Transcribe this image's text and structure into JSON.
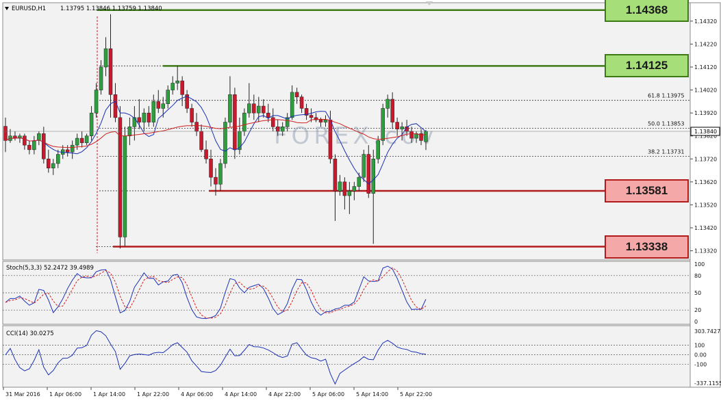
{
  "main_chart": {
    "symbol_label": "EURUSD,H1",
    "ohlc": "1.13795 1.13846 1.13759 1.13840",
    "watermark": "FOREX.cov",
    "current_price": "1.13840",
    "price_axis_labels": [
      "1.14320",
      "1.14220",
      "1.14120",
      "1.14020",
      "1.13920",
      "1.13820",
      "1.13720",
      "1.13620",
      "1.13520",
      "1.13420",
      "1.13320"
    ],
    "fib_labels": [
      {
        "text": "61.8  1.13975",
        "price": 1.13975
      },
      {
        "text": "50.0  1.13853",
        "price": 1.13853
      },
      {
        "text": "38.2  1.13731",
        "price": 1.13731
      }
    ],
    "levels": [
      {
        "label": "1.14368",
        "price": 1.14368,
        "type": "resistance",
        "color": "#a6de7a",
        "border": "#3c7a16"
      },
      {
        "label": "1.14125",
        "price": 1.14125,
        "type": "resistance",
        "color": "#a6de7a",
        "border": "#3c7a16"
      },
      {
        "label": "1.13581",
        "price": 1.13581,
        "type": "support",
        "color": "#f4a8a8",
        "border": "#b31b1b"
      },
      {
        "label": "1.13338",
        "price": 1.13338,
        "type": "support",
        "color": "#f4a8a8",
        "border": "#b31b1b"
      }
    ],
    "colors": {
      "bull": "#2e9e3e",
      "bear": "#c8192d",
      "ma_fast": "#1a2fb5",
      "ma_slow": "#d21f1f",
      "level_green": "#3c7a16",
      "level_red": "#b31b1b"
    }
  },
  "stoch": {
    "label": "Stoch(5,3,3) 52.2472 39.4989",
    "axis_labels": [
      "100",
      "80",
      "50",
      "20",
      "0"
    ],
    "main_color": "#1a2fb5",
    "signal_color": "#d21f1f"
  },
  "cci": {
    "label": "CCI(14) 30.0275",
    "axis_labels": [
      "303.7427",
      "100",
      "0.00",
      "-100",
      "-337.1155"
    ],
    "line_color": "#1a2fb5"
  },
  "time_axis": [
    "31 Mar 2016",
    "1 Apr 06:00",
    "1 Apr 14:00",
    "1 Apr 22:00",
    "4 Apr 06:00",
    "4 Apr 14:00",
    "4 Apr 22:00",
    "5 Apr 06:00",
    "5 Apr 14:00",
    "5 Apr 22:00"
  ],
  "chart_data": {
    "type": "candlestick",
    "symbol": "EURUSD",
    "timeframe": "H1",
    "candles_ohlc": [
      [
        1.13862,
        1.139,
        1.1375,
        1.138
      ],
      [
        1.138,
        1.1385,
        1.1379,
        1.1382
      ],
      [
        1.1382,
        1.1384,
        1.138,
        1.1381
      ],
      [
        1.1381,
        1.1383,
        1.1379,
        1.1382
      ],
      [
        1.1382,
        1.1383,
        1.1376,
        1.1378
      ],
      [
        1.1378,
        1.138,
        1.1374,
        1.1376
      ],
      [
        1.1376,
        1.1382,
        1.1374,
        1.138
      ],
      [
        1.138,
        1.1384,
        1.1378,
        1.1383
      ],
      [
        1.1383,
        1.1386,
        1.137,
        1.1372
      ],
      [
        1.1372,
        1.1376,
        1.1366,
        1.1368
      ],
      [
        1.1368,
        1.1372,
        1.1365,
        1.137
      ],
      [
        1.137,
        1.1376,
        1.1368,
        1.1374
      ],
      [
        1.1374,
        1.1378,
        1.1372,
        1.1376
      ],
      [
        1.1376,
        1.1378,
        1.1373,
        1.1375
      ],
      [
        1.1375,
        1.138,
        1.1372,
        1.1378
      ],
      [
        1.1378,
        1.1383,
        1.1376,
        1.1381
      ],
      [
        1.1381,
        1.1384,
        1.1377,
        1.1379
      ],
      [
        1.1379,
        1.1383,
        1.1378,
        1.1382
      ],
      [
        1.1382,
        1.1395,
        1.138,
        1.1392
      ],
      [
        1.1392,
        1.1405,
        1.139,
        1.1402
      ],
      [
        1.1402,
        1.1415,
        1.14,
        1.1412
      ],
      [
        1.1412,
        1.1425,
        1.1408,
        1.142
      ],
      [
        1.142,
        1.1435,
        1.139,
        1.14
      ],
      [
        1.14,
        1.1405,
        1.1388,
        1.139
      ],
      [
        1.139,
        1.1395,
        1.1333,
        1.1338
      ],
      [
        1.1338,
        1.1386,
        1.1334,
        1.1382
      ],
      [
        1.1382,
        1.139,
        1.1378,
        1.1386
      ],
      [
        1.1386,
        1.1395,
        1.138,
        1.139
      ],
      [
        1.139,
        1.1398,
        1.1385,
        1.1388
      ],
      [
        1.1388,
        1.1394,
        1.1384,
        1.1392
      ],
      [
        1.1392,
        1.1395,
        1.1386,
        1.1388
      ],
      [
        1.1388,
        1.14,
        1.1386,
        1.1397
      ],
      [
        1.1397,
        1.1402,
        1.1392,
        1.1394
      ],
      [
        1.1394,
        1.1399,
        1.139,
        1.1396
      ],
      [
        1.1396,
        1.1404,
        1.1394,
        1.1402
      ],
      [
        1.1402,
        1.1408,
        1.14,
        1.1405
      ],
      [
        1.1405,
        1.14125,
        1.1402,
        1.1406
      ],
      [
        1.1406,
        1.1408,
        1.1395,
        1.14
      ],
      [
        1.14,
        1.1402,
        1.1392,
        1.1394
      ],
      [
        1.1394,
        1.1396,
        1.1386,
        1.1388
      ],
      [
        1.1388,
        1.1392,
        1.1382,
        1.1384
      ],
      [
        1.1384,
        1.1387,
        1.1375,
        1.1376
      ],
      [
        1.1376,
        1.138,
        1.137,
        1.1372
      ],
      [
        1.1372,
        1.1376,
        1.136,
        1.1364
      ],
      [
        1.1364,
        1.1368,
        1.1356,
        1.1361
      ],
      [
        1.1361,
        1.1372,
        1.1358,
        1.137
      ],
      [
        1.137,
        1.139,
        1.1368,
        1.1388
      ],
      [
        1.1388,
        1.1408,
        1.1386,
        1.14
      ],
      [
        1.14,
        1.1403,
        1.1372,
        1.1376
      ],
      [
        1.1376,
        1.139,
        1.1374,
        1.1384
      ],
      [
        1.1384,
        1.1394,
        1.1382,
        1.1392
      ],
      [
        1.1392,
        1.1405,
        1.139,
        1.1396
      ],
      [
        1.1396,
        1.14,
        1.1389,
        1.1392
      ],
      [
        1.1392,
        1.1399,
        1.1388,
        1.1395
      ],
      [
        1.1395,
        1.1398,
        1.139,
        1.1392
      ],
      [
        1.1392,
        1.1396,
        1.1388,
        1.139
      ],
      [
        1.139,
        1.1394,
        1.1384,
        1.1386
      ],
      [
        1.1386,
        1.1389,
        1.1382,
        1.1384
      ],
      [
        1.1384,
        1.1388,
        1.1382,
        1.1386
      ],
      [
        1.1386,
        1.1392,
        1.1384,
        1.139
      ],
      [
        1.139,
        1.1404,
        1.1389,
        1.1401
      ],
      [
        1.1401,
        1.1403,
        1.1396,
        1.1399
      ],
      [
        1.1399,
        1.14,
        1.1392,
        1.1394
      ],
      [
        1.1394,
        1.1396,
        1.1389,
        1.1391
      ],
      [
        1.1391,
        1.1394,
        1.1388,
        1.139
      ],
      [
        1.139,
        1.1392,
        1.1388,
        1.1389
      ],
      [
        1.1389,
        1.139,
        1.1386,
        1.1388
      ],
      [
        1.1388,
        1.1391,
        1.1386,
        1.1389
      ],
      [
        1.1389,
        1.1393,
        1.137,
        1.1372
      ],
      [
        1.1372,
        1.1374,
        1.1345,
        1.1358
      ],
      [
        1.1358,
        1.1365,
        1.1356,
        1.1362
      ],
      [
        1.1362,
        1.1364,
        1.135,
        1.1356
      ],
      [
        1.1356,
        1.1362,
        1.1348,
        1.1358
      ],
      [
        1.1358,
        1.1362,
        1.1354,
        1.136
      ],
      [
        1.136,
        1.1366,
        1.1358,
        1.1364
      ],
      [
        1.1364,
        1.1376,
        1.1362,
        1.1374
      ],
      [
        1.1374,
        1.1378,
        1.1355,
        1.1357
      ],
      [
        1.1357,
        1.1376,
        1.1335,
        1.1372
      ],
      [
        1.1372,
        1.1382,
        1.137,
        1.138
      ],
      [
        1.138,
        1.1396,
        1.1378,
        1.1394
      ],
      [
        1.1394,
        1.14,
        1.139,
        1.1398
      ],
      [
        1.1398,
        1.1401,
        1.1385,
        1.1388
      ],
      [
        1.1388,
        1.139,
        1.1382,
        1.1385
      ],
      [
        1.1385,
        1.1388,
        1.138,
        1.1386
      ],
      [
        1.1386,
        1.1389,
        1.1382,
        1.1384
      ],
      [
        1.1384,
        1.1386,
        1.1379,
        1.1381
      ],
      [
        1.1381,
        1.1384,
        1.1379,
        1.1383
      ],
      [
        1.1383,
        1.1385,
        1.1378,
        1.138
      ],
      [
        1.13795,
        1.13846,
        1.13759,
        1.1384
      ]
    ],
    "ylim": [
      1.1328,
      1.144
    ],
    "levels": [
      1.14368,
      1.14125,
      1.13581,
      1.13338
    ],
    "fibonacci": [
      {
        "ratio": 61.8,
        "price": 1.13975
      },
      {
        "ratio": 50.0,
        "price": 1.13853
      },
      {
        "ratio": 38.2,
        "price": 1.13731
      }
    ],
    "indicators": [
      {
        "name": "Stoch(5,3,3)",
        "values": [
          52.2472,
          39.4989
        ],
        "ylim": [
          0,
          100
        ],
        "levels": [
          80,
          50,
          20
        ]
      },
      {
        "name": "CCI(14)",
        "value": 30.0275,
        "ylim": [
          -337.1155,
          303.7427
        ],
        "levels": [
          100,
          0,
          -100
        ]
      }
    ]
  }
}
